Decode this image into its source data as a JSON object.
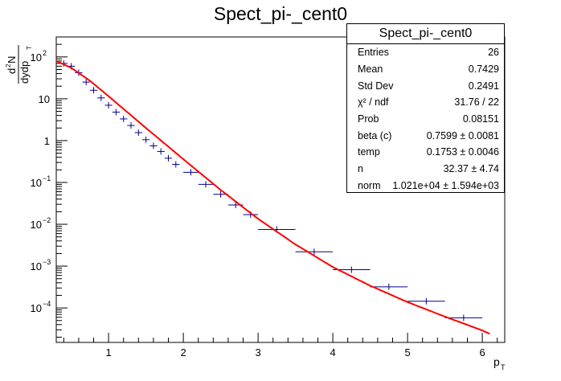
{
  "chart_data": {
    "type": "scatter",
    "title": "Spect_pi-_cent0",
    "xlabel_main": "p",
    "xlabel_sub": "T",
    "ylabel_num": "d",
    "ylabel_num_sup": "2",
    "ylabel_num_rest": "N",
    "ylabel_den": "dydp",
    "ylabel_den_sub": "T",
    "xlim": [
      0.3,
      6.3
    ],
    "ylim": [
      1.5e-05,
      300
    ],
    "log_y": true,
    "grid": false,
    "x_ticks": [
      "1",
      "2",
      "3",
      "4",
      "5",
      "6"
    ],
    "y_ticks": [
      {
        "base": "10",
        "exp": "2",
        "value": 100
      },
      {
        "base": "10",
        "exp": "",
        "value": 10
      },
      {
        "base": "1",
        "exp": "",
        "value": 1
      },
      {
        "base": "10",
        "exp": "−1",
        "value": 0.1
      },
      {
        "base": "10",
        "exp": "−2",
        "value": 0.01
      },
      {
        "base": "10",
        "exp": "−3",
        "value": 0.001
      },
      {
        "base": "10",
        "exp": "−4",
        "value": 0.0001
      }
    ],
    "points": [
      {
        "x": 0.4,
        "y": 70,
        "xerr": 0.05
      },
      {
        "x": 0.5,
        "y": 60,
        "xerr": 0.05
      },
      {
        "x": 0.6,
        "y": 42,
        "xerr": 0.05
      },
      {
        "x": 0.7,
        "y": 25,
        "xerr": 0.05
      },
      {
        "x": 0.8,
        "y": 16,
        "xerr": 0.05
      },
      {
        "x": 0.9,
        "y": 10.5,
        "xerr": 0.05
      },
      {
        "x": 1.0,
        "y": 7.0,
        "xerr": 0.05
      },
      {
        "x": 1.1,
        "y": 4.8,
        "xerr": 0.05
      },
      {
        "x": 1.2,
        "y": 3.3,
        "xerr": 0.05
      },
      {
        "x": 1.3,
        "y": 2.3,
        "xerr": 0.05
      },
      {
        "x": 1.4,
        "y": 1.55,
        "xerr": 0.05
      },
      {
        "x": 1.5,
        "y": 1.05,
        "xerr": 0.05
      },
      {
        "x": 1.6,
        "y": 0.75,
        "xerr": 0.05
      },
      {
        "x": 1.7,
        "y": 0.55,
        "xerr": 0.05
      },
      {
        "x": 1.8,
        "y": 0.38,
        "xerr": 0.05
      },
      {
        "x": 1.9,
        "y": 0.27,
        "xerr": 0.05
      },
      {
        "x": 2.1,
        "y": 0.175,
        "xerr": 0.1
      },
      {
        "x": 2.3,
        "y": 0.09,
        "xerr": 0.1
      },
      {
        "x": 2.5,
        "y": 0.052,
        "xerr": 0.1
      },
      {
        "x": 2.7,
        "y": 0.029,
        "xerr": 0.1
      },
      {
        "x": 2.9,
        "y": 0.017,
        "xerr": 0.1
      },
      {
        "x": 3.25,
        "y": 0.0075,
        "xerr": 0.25
      },
      {
        "x": 3.75,
        "y": 0.0022,
        "xerr": 0.25
      },
      {
        "x": 4.25,
        "y": 0.00082,
        "xerr": 0.25
      },
      {
        "x": 4.75,
        "y": 0.00032,
        "xerr": 0.25
      },
      {
        "x": 5.25,
        "y": 0.000145,
        "xerr": 0.25
      },
      {
        "x": 5.75,
        "y": 5.8e-05,
        "xerr": 0.25
      }
    ],
    "fit": {
      "color": "#ff0000",
      "x": [
        0.3,
        0.5,
        0.75,
        1.0,
        1.25,
        1.5,
        1.75,
        2.0,
        2.5,
        3.0,
        3.5,
        4.0,
        4.5,
        5.0,
        5.5,
        6.0,
        6.1
      ],
      "y": [
        80,
        55,
        27,
        11.5,
        4.8,
        2.0,
        0.85,
        0.36,
        0.066,
        0.0135,
        0.0033,
        0.00095,
        0.00034,
        0.000138,
        6.2e-05,
        2.9e-05,
        2.4e-05
      ]
    },
    "marker_color": "#00008b"
  },
  "stats": {
    "title": "Spect_pi-_cent0",
    "rows": [
      {
        "label": "Entries",
        "value": "26"
      },
      {
        "label": "Mean",
        "value": "0.7429"
      },
      {
        "label": "Std Dev",
        "value": "0.2491"
      },
      {
        "label": "χ² / ndf",
        "value": "31.76 / 22"
      },
      {
        "label": "Prob",
        "value": "0.08151"
      },
      {
        "label": "beta (c)",
        "value": "0.7599 ± 0.0081"
      },
      {
        "label": "temp",
        "value": "0.1753 ± 0.0046"
      },
      {
        "label": "n",
        "value": "32.37 ± 4.74"
      },
      {
        "label": "norm",
        "value": "1.021e+04 ± 1.594e+03"
      }
    ]
  }
}
